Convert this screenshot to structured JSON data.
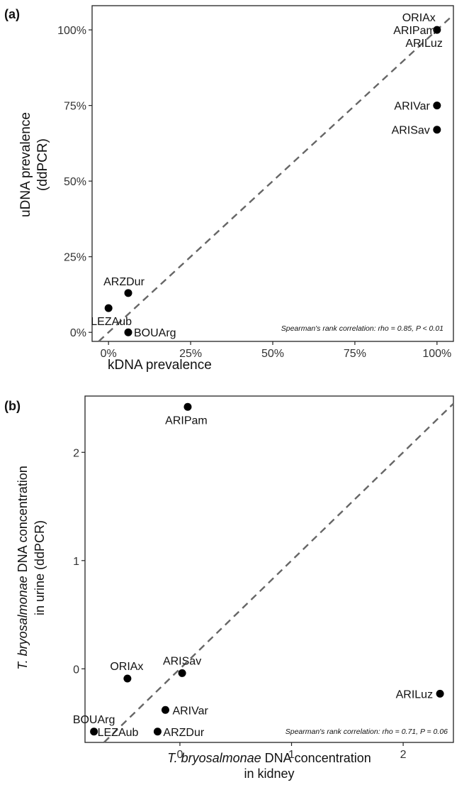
{
  "chart_data": [
    {
      "panel_label": "(a)",
      "type": "scatter",
      "xlabel": "kDNA prevalence",
      "ylabel_lines": [
        "uDNA prevalence",
        "(ddPCR)"
      ],
      "xlim": [
        -0.05,
        1.05
      ],
      "ylim": [
        -0.03,
        1.08
      ],
      "xticks": [
        0,
        0.25,
        0.5,
        0.75,
        1.0
      ],
      "xtick_labels": [
        "0%",
        "25%",
        "50%",
        "75%",
        "100%"
      ],
      "yticks": [
        0,
        0.25,
        0.5,
        0.75,
        1.0
      ],
      "ytick_labels": [
        "0%",
        "25%",
        "50%",
        "75%",
        "100%"
      ],
      "points": [
        {
          "label": "ORIAx",
          "x": 1.0,
          "y": 1.0
        },
        {
          "label": "ARIPam",
          "x": 1.0,
          "y": 1.0
        },
        {
          "label": "ARILuz",
          "x": 1.0,
          "y": 1.0
        },
        {
          "label": "ARIVar",
          "x": 1.0,
          "y": 0.75
        },
        {
          "label": "ARISav",
          "x": 1.0,
          "y": 0.67
        },
        {
          "label": "ARZDur",
          "x": 0.06,
          "y": 0.13
        },
        {
          "label": "LEZAub",
          "x": 0.0,
          "y": 0.08
        },
        {
          "label": "BOUArg",
          "x": 0.06,
          "y": 0.0
        }
      ],
      "reference_line": "y = x (dashed)",
      "annotation": {
        "prefix": "Spearman's rank correlation: rho = 0.85, ",
        "p_label": "P",
        "p_suffix": " < 0.01"
      }
    },
    {
      "panel_label": "(b)",
      "type": "scatter",
      "xlabel_italic": "T. bryosalmonae",
      "xlabel_rest": " DNA concentration",
      "xlabel_line2": "in kidney",
      "ylabel_italic": "T. bryosalmonae",
      "ylabel_rest": " DNA concentration",
      "ylabel_line2": "in urine (ddPCR)",
      "xlim": [
        -0.85,
        2.45
      ],
      "ylim": [
        -0.68,
        2.52
      ],
      "xticks": [
        0,
        1,
        2
      ],
      "xtick_labels": [
        "0",
        "1",
        "2"
      ],
      "yticks": [
        0,
        1,
        2
      ],
      "ytick_labels": [
        "0",
        "1",
        "2"
      ],
      "points": [
        {
          "label": "ARIPam",
          "x": 0.07,
          "y": 2.42
        },
        {
          "label": "ORIAx",
          "x": -0.47,
          "y": -0.09
        },
        {
          "label": "ARISav",
          "x": 0.02,
          "y": -0.04
        },
        {
          "label": "ARIVar",
          "x": -0.13,
          "y": -0.38
        },
        {
          "label": "ARZDur",
          "x": -0.2,
          "y": -0.58
        },
        {
          "label": "LEZAub",
          "x": -0.77,
          "y": -0.58
        },
        {
          "label": "BOUArg",
          "x": -0.77,
          "y": -0.58
        },
        {
          "label": "ARILuz",
          "x": 2.33,
          "y": -0.23
        }
      ],
      "reference_line": "y = x (dashed)",
      "annotation": {
        "prefix": "Spearman's rank correlation: rho = 0.71, ",
        "p_label": "P",
        "p_suffix": " = 0.06"
      }
    }
  ]
}
